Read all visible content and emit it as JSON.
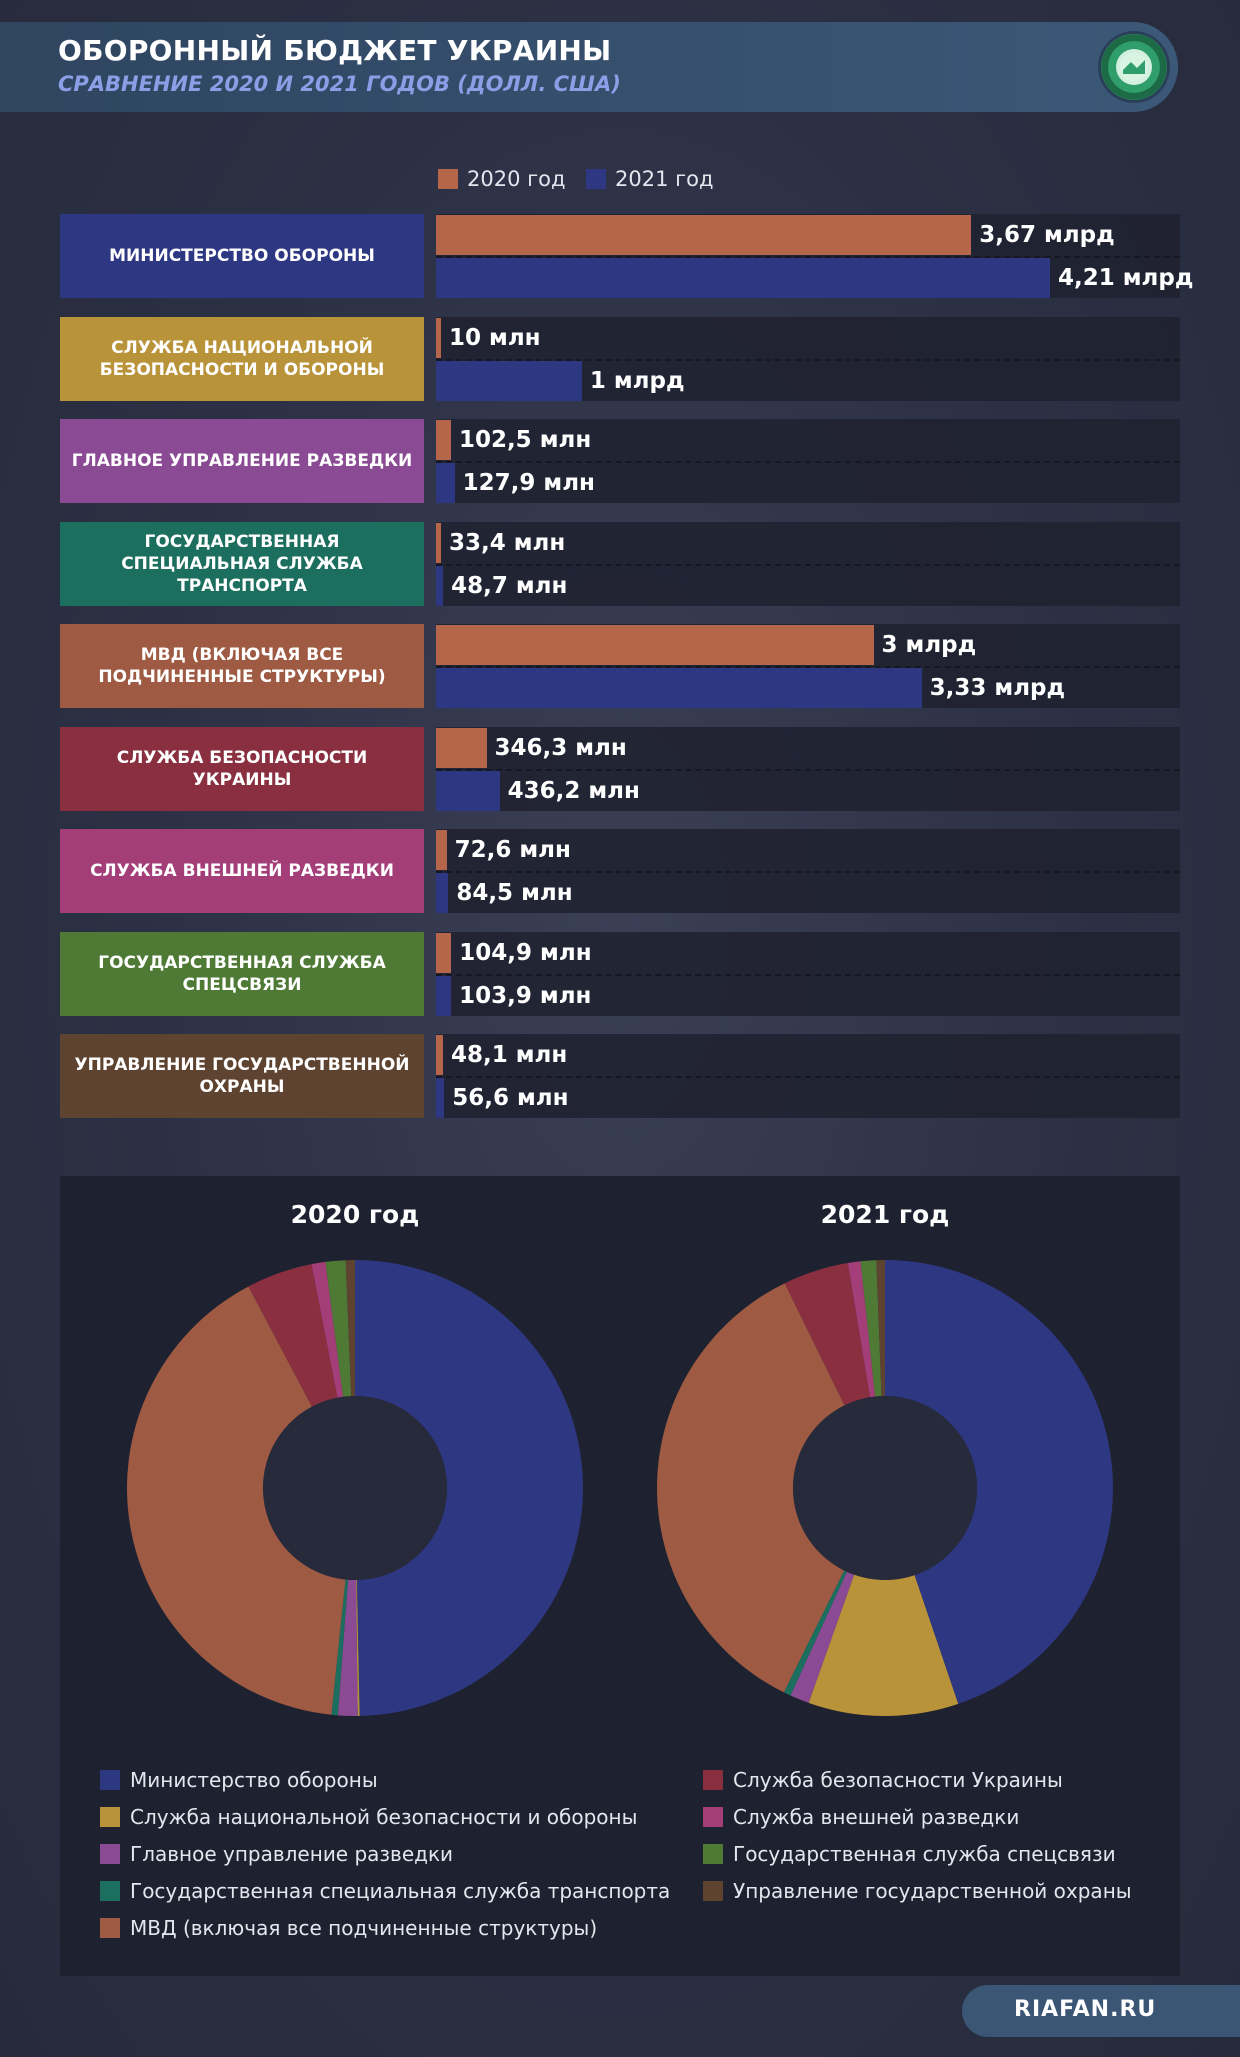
{
  "header": {
    "title": "ОБОРОННЫЙ БЮДЖЕТ УКРАИНЫ",
    "subtitle": "СРАВНЕНИЕ 2020 И 2021 ГОДОВ (ДОЛЛ. США)"
  },
  "legend": {
    "y2020": "2020 год",
    "y2021": "2021 год"
  },
  "colors": {
    "y2020": "#b5654a",
    "y2021": "#2e3781"
  },
  "chart_data": [
    {
      "type": "bar",
      "title": "Оборонный бюджет Украины",
      "categories": [
        "Министерство обороны",
        "Служба национальной безопасности и обороны",
        "Главное управление разведки",
        "Государственная специальная служба транспорта",
        "МВД (включая все подчиненные структуры)",
        "Служба безопасности Украины",
        "Служба внешней разведки",
        "Государственная служба спецсвязи",
        "Управление государственной охраны"
      ],
      "category_colors": [
        "#2e3781",
        "#b99339",
        "#8a4a94",
        "#1c6f5e",
        "#9e5a42",
        "#8a2f40",
        "#a33e78",
        "#4f7a35",
        "#5e4330"
      ],
      "series": [
        {
          "name": "2020 год",
          "values_musd": [
            3670,
            10,
            102.5,
            33.4,
            3000,
            346.3,
            72.6,
            104.9,
            48.1
          ],
          "labels": [
            "3,67 млрд",
            "10 млн",
            "102,5 млн",
            "33,4 млн",
            "3 млрд",
            "346,3 млн",
            "72,6 млн",
            "104,9 млн",
            "48,1 млн"
          ]
        },
        {
          "name": "2021 год",
          "values_musd": [
            4210,
            1000,
            127.9,
            48.7,
            3330,
            436.2,
            84.5,
            103.9,
            56.6
          ],
          "labels": [
            "4,21 млрд",
            "1 млрд",
            "127,9 млн",
            "48,7 млн",
            "3,33 млрд",
            "436,2 млн",
            "84,5 млн",
            "103,9 млн",
            "56,6 млн"
          ]
        }
      ],
      "xlim": [
        0,
        4210
      ]
    },
    {
      "type": "pie",
      "title": "2020 год",
      "values": [
        3670,
        10,
        102.5,
        33.4,
        3000,
        346.3,
        72.6,
        104.9,
        48.1
      ]
    },
    {
      "type": "pie",
      "title": "2021 год",
      "values": [
        4210,
        1000,
        127.9,
        48.7,
        3330,
        436.2,
        84.5,
        103.9,
        56.6
      ]
    }
  ],
  "pie_legend": [
    "Министерство обороны",
    "Служба национальной безопасности и обороны",
    "Главное управление разведки",
    "Государственная специальная служба транспорта",
    "МВД (включая все подчиненные структуры)",
    "Служба безопасности Украины",
    "Служба внешней разведки",
    "Государственная служба спецсвязи",
    "Управление государственной охраны"
  ],
  "row_labels": [
    "Министерство обороны",
    "Служба национальной безопасности и обороны",
    "Главное управление разведки",
    "Государственная специальная служба транспорта",
    "МВД (включая все подчиненные структуры)",
    "Служба безопасности Украины",
    "Служба внешней разведки",
    "Государственная служба спецсвязи",
    "Управление государственной охраны"
  ],
  "footer": {
    "site": "RIAFAN.RU"
  }
}
